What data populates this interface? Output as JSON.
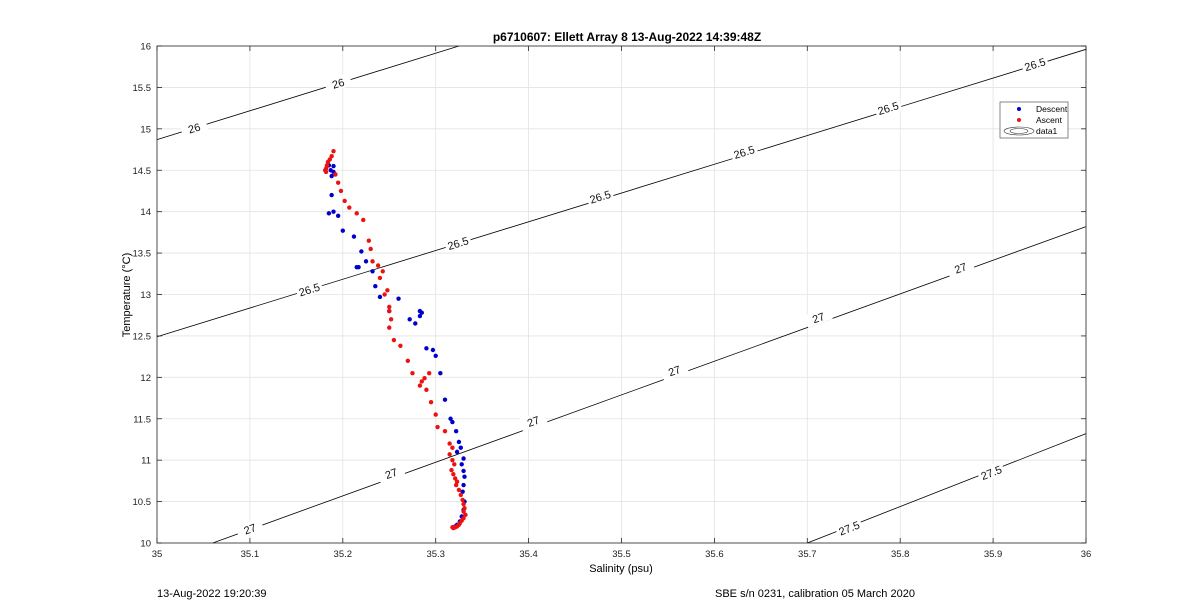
{
  "chart_data": {
    "type": "scatter",
    "title": "p6710607: Ellett Array 8 13-Aug-2022 14:39:48Z",
    "xlabel": "Salinity (psu)",
    "ylabel": "Temperature (°C)",
    "xlim": [
      35,
      36
    ],
    "ylim": [
      10,
      16
    ],
    "xticks": [
      35,
      35.1,
      35.2,
      35.3,
      35.4,
      35.5,
      35.6,
      35.7,
      35.8,
      35.9,
      36
    ],
    "xtick_labels": [
      "35",
      "35.1",
      "35.2",
      "35.3",
      "35.4",
      "35.5",
      "35.6",
      "35.7",
      "35.8",
      "35.9",
      "36"
    ],
    "yticks": [
      10,
      10.5,
      11,
      11.5,
      12,
      12.5,
      13,
      13.5,
      14,
      14.5,
      15,
      15.5,
      16
    ],
    "ytick_labels": [
      "10",
      "10.5",
      "11",
      "11.5",
      "12",
      "12.5",
      "13",
      "13.5",
      "14",
      "14.5",
      "15",
      "15.5",
      "16"
    ],
    "grid": true,
    "legend_position": "top-right",
    "series": [
      {
        "name": "Descent",
        "color": "#0000cc",
        "marker": "dot",
        "x": [
          35.185,
          35.187,
          35.19,
          35.188,
          35.19,
          35.192,
          35.188,
          35.19,
          35.185,
          35.195,
          35.2,
          35.212,
          35.217,
          35.22,
          35.225,
          35.232,
          35.215,
          35.235,
          35.24,
          35.25,
          35.26,
          35.272,
          35.278,
          35.283,
          35.285,
          35.283,
          35.29,
          35.297,
          35.3,
          35.305,
          35.31,
          35.316,
          35.318,
          35.322,
          35.325,
          35.327,
          35.33,
          35.323,
          35.328,
          35.33,
          35.331,
          35.33,
          35.329,
          35.331,
          35.33,
          35.328,
          35.326,
          35.323,
          35.321
        ],
        "y": [
          14.56,
          14.5,
          14.48,
          14.43,
          14.55,
          14.45,
          14.2,
          14.0,
          13.98,
          13.95,
          13.77,
          13.7,
          13.33,
          13.52,
          13.4,
          13.28,
          13.33,
          13.1,
          12.97,
          12.8,
          12.95,
          12.7,
          12.65,
          12.8,
          12.78,
          12.74,
          12.35,
          12.33,
          12.26,
          12.05,
          11.73,
          11.5,
          11.46,
          11.35,
          11.22,
          11.15,
          11.02,
          11.1,
          10.95,
          10.87,
          10.8,
          10.7,
          10.62,
          10.5,
          10.4,
          10.32,
          10.26,
          10.22,
          10.2
        ]
      },
      {
        "name": "Ascent",
        "color": "#ee1111",
        "marker": "dot",
        "x": [
          35.19,
          35.188,
          35.186,
          35.184,
          35.183,
          35.182,
          35.181,
          35.183,
          35.182,
          35.192,
          35.195,
          35.198,
          35.202,
          35.207,
          35.215,
          35.222,
          35.228,
          35.23,
          35.232,
          35.238,
          35.24,
          35.243,
          35.245,
          35.248,
          35.25,
          35.252,
          35.25,
          35.25,
          35.255,
          35.262,
          35.27,
          35.275,
          35.283,
          35.285,
          35.288,
          35.29,
          35.293,
          35.295,
          35.3,
          35.302,
          35.31,
          35.315,
          35.318,
          35.315,
          35.318,
          35.32,
          35.317,
          35.319,
          35.321,
          35.323,
          35.322,
          35.325,
          35.327,
          35.329,
          35.33,
          35.331,
          35.33,
          35.332,
          35.33,
          35.328,
          35.326,
          35.325,
          35.323,
          35.321,
          35.319,
          35.318
        ],
        "y": [
          14.73,
          14.67,
          14.63,
          14.6,
          14.56,
          14.52,
          14.5,
          14.55,
          14.48,
          14.45,
          14.35,
          14.25,
          14.13,
          14.05,
          13.98,
          13.9,
          13.65,
          13.55,
          13.4,
          13.35,
          13.2,
          13.28,
          13.0,
          13.05,
          12.8,
          12.7,
          12.6,
          12.85,
          12.45,
          12.38,
          12.2,
          12.05,
          11.9,
          11.95,
          11.99,
          11.85,
          12.05,
          11.7,
          11.55,
          11.4,
          11.35,
          11.2,
          11.15,
          11.07,
          11.0,
          10.95,
          10.88,
          10.83,
          10.78,
          10.74,
          10.7,
          10.64,
          10.58,
          10.52,
          10.47,
          10.42,
          10.38,
          10.34,
          10.3,
          10.27,
          10.24,
          10.22,
          10.2,
          10.19,
          10.18,
          10.19
        ]
      },
      {
        "name": "data1",
        "type": "contour",
        "color": "#000000",
        "levels": [
          {
            "label": "26",
            "x": [
              35.0,
              35.325
            ],
            "y": [
              14.87,
              16.0
            ]
          },
          {
            "label": "26.5",
            "x": [
              35.0,
              36.0
            ],
            "y": [
              12.49,
              15.96
            ]
          },
          {
            "label": "27",
            "x": [
              35.06,
              36.0
            ],
            "y": [
              10.0,
              13.82
            ]
          },
          {
            "label": "27.5",
            "x": [
              35.7,
              36.0
            ],
            "y": [
              10.0,
              11.32
            ]
          }
        ],
        "label_positions": [
          {
            "label": "26",
            "x": [
              35.04,
              35.195
            ],
            "y": [
              15.01,
              15.55
            ]
          },
          {
            "label": "26.5",
            "x": [
              35.164,
              35.324,
              35.477,
              35.632,
              35.787,
              35.945
            ],
            "y": [
              13.06,
              13.62,
              14.18,
              14.72,
              15.25,
              15.78
            ]
          },
          {
            "label": "27",
            "x": [
              35.1,
              35.252,
              35.405,
              35.557,
              35.712,
              35.865
            ],
            "y": [
              10.17,
              10.84,
              11.47,
              12.08,
              12.72,
              13.32
            ]
          },
          {
            "label": "27.5",
            "x": [
              35.745,
              35.898
            ],
            "y": [
              10.18,
              10.85
            ]
          }
        ]
      }
    ]
  },
  "footer": {
    "left": "13-Aug-2022 19:20:39",
    "right": "SBE s/n 0231, calibration 05 March 2020"
  }
}
